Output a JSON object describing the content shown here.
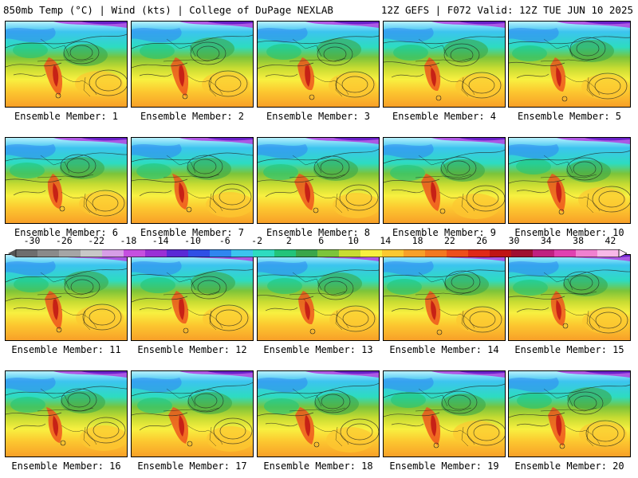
{
  "header": {
    "left": "850mb Temp (°C) | Wind (kts) | College of DuPage NEXLAB",
    "right": "12Z GEFS | F072 Valid: 12Z TUE JUN 10 2025"
  },
  "colorbar": {
    "tick_labels": [
      "-30",
      "-26",
      "-22",
      "-18",
      "-14",
      "-10",
      "-6",
      "-2",
      "2",
      "6",
      "10",
      "14",
      "18",
      "22",
      "26",
      "30",
      "34",
      "38",
      "42"
    ],
    "colors": [
      "#6e6e6e",
      "#8a8a8a",
      "#a5a5a5",
      "#c8c8c8",
      "#d79ee6",
      "#c64fe0",
      "#9a2fd6",
      "#5a2ad6",
      "#2f4fe6",
      "#2f86f0",
      "#3cc4ef",
      "#2ddcc0",
      "#22c47a",
      "#3aa64a",
      "#7cc43a",
      "#c8dc32",
      "#f8f040",
      "#fcc830",
      "#f8a028",
      "#f47820",
      "#ee4e1c",
      "#e02818",
      "#c01414",
      "#a01030",
      "#c02080",
      "#e040b0",
      "#f080d0",
      "#f8b8e8"
    ]
  },
  "panels": [
    {
      "label": "Ensemble Member: 1"
    },
    {
      "label": "Ensemble Member: 2"
    },
    {
      "label": "Ensemble Member: 3"
    },
    {
      "label": "Ensemble Member: 4"
    },
    {
      "label": "Ensemble Member: 5"
    },
    {
      "label": "Ensemble Member: 6"
    },
    {
      "label": "Ensemble Member: 7"
    },
    {
      "label": "Ensemble Member: 8"
    },
    {
      "label": "Ensemble Member: 9"
    },
    {
      "label": "Ensemble Member: 10"
    },
    {
      "label": "Ensemble Member: 11"
    },
    {
      "label": "Ensemble Member: 12"
    },
    {
      "label": "Ensemble Member: 13"
    },
    {
      "label": "Ensemble Member: 14"
    },
    {
      "label": "Ensemble Member: 15"
    },
    {
      "label": "Ensemble Member: 16"
    },
    {
      "label": "Ensemble Member: 17"
    },
    {
      "label": "Ensemble Member: 18"
    },
    {
      "label": "Ensemble Member: 19"
    },
    {
      "label": "Ensemble Member: 20"
    }
  ]
}
